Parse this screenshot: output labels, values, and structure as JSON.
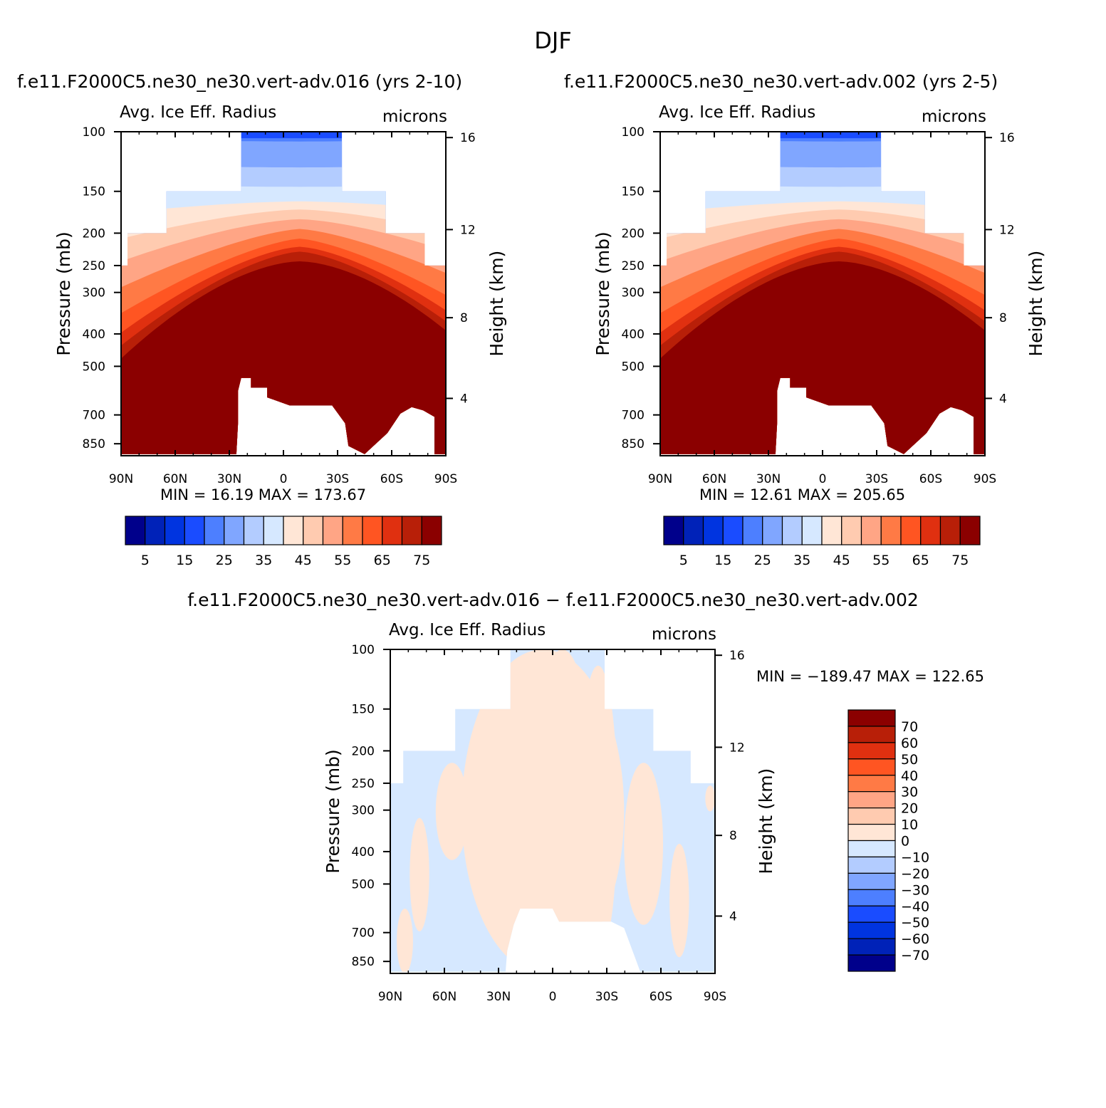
{
  "page": {
    "title": "DJF"
  },
  "panels": [
    {
      "title": "f.e11.F2000C5.ne30_ne30.vert-adv.016 (yrs 2-10)",
      "subtitle_left": "Avg. Ice Eff. Radius",
      "subtitle_right": "microns",
      "stats": "MIN =   16.19   MAX = 173.67",
      "min": 16.19,
      "max": 173.67
    },
    {
      "title": "f.e11.F2000C5.ne30_ne30.vert-adv.002 (yrs 2-5)",
      "subtitle_left": "Avg. Ice Eff. Radius",
      "subtitle_right": "microns",
      "stats": "MIN =   12.61   MAX = 205.65",
      "min": 12.61,
      "max": 205.65
    },
    {
      "title": "f.e11.F2000C5.ne30_ne30.vert-adv.016 − f.e11.F2000C5.ne30_ne30.vert-adv.002",
      "subtitle_left": "Avg. Ice Eff. Radius",
      "subtitle_right": "microns",
      "stats": "MIN = −189.47   MAX = 122.65",
      "min": -189.47,
      "max": 122.65
    }
  ],
  "chart_data": [
    {
      "type": "heatmap",
      "title": "Avg. Ice Eff. Radius",
      "units": "microns",
      "xlabel": "",
      "ylabel": "Pressure (mb)",
      "y2label": "Height (km)",
      "x_ticks": [
        "90N",
        "60N",
        "30N",
        "0",
        "30S",
        "60S",
        "90S"
      ],
      "y_ticks": [
        "100",
        "150",
        "200",
        "250",
        "300",
        "400",
        "500",
        "700",
        "850"
      ],
      "y2_ticks": [
        "16",
        "12",
        "8",
        "4"
      ],
      "contour_levels": [
        5,
        10,
        15,
        20,
        25,
        30,
        35,
        40,
        45,
        50,
        55,
        60,
        65,
        70,
        75
      ],
      "colorbar_labels": [
        "5",
        "15",
        "25",
        "35",
        "45",
        "55",
        "65",
        "75"
      ],
      "min": 16.19,
      "max": 173.67
    },
    {
      "type": "heatmap",
      "title": "Avg. Ice Eff. Radius",
      "units": "microns",
      "xlabel": "",
      "ylabel": "Pressure (mb)",
      "y2label": "Height (km)",
      "x_ticks": [
        "90N",
        "60N",
        "30N",
        "0",
        "30S",
        "60S",
        "90S"
      ],
      "y_ticks": [
        "100",
        "150",
        "200",
        "250",
        "300",
        "400",
        "500",
        "700",
        "850"
      ],
      "y2_ticks": [
        "16",
        "12",
        "8",
        "4"
      ],
      "contour_levels": [
        5,
        10,
        15,
        20,
        25,
        30,
        35,
        40,
        45,
        50,
        55,
        60,
        65,
        70,
        75
      ],
      "colorbar_labels": [
        "5",
        "15",
        "25",
        "35",
        "45",
        "55",
        "65",
        "75"
      ],
      "min": 12.61,
      "max": 205.65
    },
    {
      "type": "heatmap",
      "title": "Avg. Ice Eff. Radius",
      "units": "microns",
      "xlabel": "",
      "ylabel": "Pressure (mb)",
      "y2label": "Height (km)",
      "x_ticks": [
        "90N",
        "60N",
        "30N",
        "0",
        "30S",
        "60S",
        "90S"
      ],
      "y_ticks": [
        "100",
        "150",
        "200",
        "250",
        "300",
        "400",
        "500",
        "700",
        "850"
      ],
      "y2_ticks": [
        "16",
        "12",
        "8",
        "4"
      ],
      "contour_levels": [
        -70,
        -60,
        -50,
        -40,
        -30,
        -20,
        -10,
        0,
        10,
        20,
        30,
        40,
        50,
        60,
        70
      ],
      "colorbar_labels": [
        "70",
        "60",
        "50",
        "40",
        "30",
        "20",
        "10",
        "0",
        "−10",
        "−20",
        "−30",
        "−40",
        "−50",
        "−60",
        "−70"
      ],
      "min": -189.47,
      "max": 122.65
    }
  ],
  "palette": [
    "#00008b",
    "#0022b8",
    "#0034e0",
    "#1a4cff",
    "#4d7fff",
    "#80a6ff",
    "#b3ccff",
    "#d6e8ff",
    "#ffe6d6",
    "#ffcbb0",
    "#ffa585",
    "#ff7a45",
    "#ff5522",
    "#e03010",
    "#b81f08",
    "#8b0000"
  ]
}
